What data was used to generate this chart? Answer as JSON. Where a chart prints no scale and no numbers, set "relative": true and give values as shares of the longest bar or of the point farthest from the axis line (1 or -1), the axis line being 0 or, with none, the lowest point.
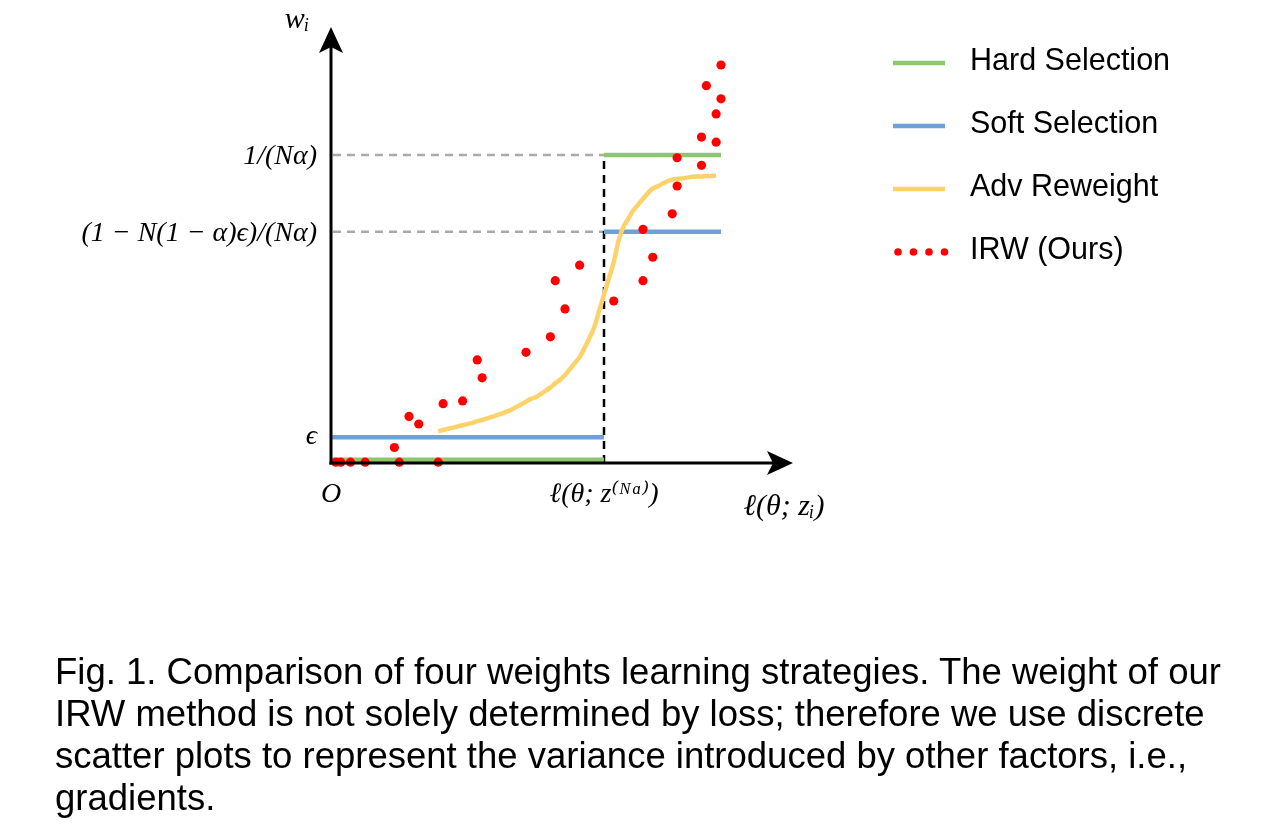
{
  "chart_data": {
    "type": "line",
    "relative": true,
    "xlabel": "ℓ(θ; zᵢ)",
    "ylabel": "wᵢ",
    "categories": [
      "O",
      null,
      null,
      null,
      null,
      null,
      null,
      null,
      null,
      null,
      null,
      null,
      null,
      null,
      null,
      null,
      null,
      null,
      null,
      null,
      null,
      null,
      null,
      null,
      null,
      null,
      null,
      null,
      null,
      null,
      null,
      null,
      null,
      null,
      null,
      null,
      null,
      null,
      null,
      null,
      null,
      null,
      null,
      null,
      null,
      null,
      null,
      null,
      null,
      null,
      null,
      null,
      null,
      null,
      null,
      null,
      "ℓ(θ; z⁽ᴺᵅ⁾)",
      null,
      null,
      null,
      null,
      null,
      null,
      null,
      null,
      null,
      null,
      null,
      null,
      null,
      null,
      null,
      null,
      null,
      null,
      null,
      null,
      null,
      null,
      null,
      null
    ],
    "series": [
      {
        "name": "Hard Selection",
        "color": "#8cc76f",
        "values": [
          0.008,
          0.008,
          0.008,
          0.008,
          0.008,
          0.008,
          0.008,
          0.008,
          0.008,
          0.008,
          0.008,
          0.008,
          0.008,
          0.008,
          0.008,
          0.008,
          0.008,
          0.008,
          0.008,
          0.008,
          0.008,
          0.008,
          0.008,
          0.008,
          0.008,
          0.008,
          0.008,
          0.008,
          0.008,
          0.008,
          0.008,
          0.008,
          0.008,
          0.008,
          0.008,
          0.008,
          0.008,
          0.008,
          0.008,
          0.008,
          0.008,
          0.008,
          0.008,
          0.008,
          0.008,
          0.008,
          0.008,
          0.008,
          0.008,
          0.008,
          0.008,
          0.008,
          0.008,
          0.008,
          0.008,
          0.008,
          0.008,
          null,
          null,
          null,
          null,
          null,
          null,
          null,
          null,
          null,
          null,
          null,
          null,
          null,
          null,
          null,
          null,
          null,
          null,
          null,
          null,
          null,
          null,
          null,
          null
        ]
      },
      {
        "name": "Soft Selection",
        "color": "#6fa0dc",
        "values": [
          0.065,
          0.065,
          0.065,
          0.065,
          0.065,
          0.065,
          0.065,
          0.065,
          0.065,
          0.065,
          0.065,
          0.065,
          0.065,
          0.065,
          0.065,
          0.065,
          0.065,
          0.065,
          0.065,
          0.065,
          0.065,
          0.065,
          0.065,
          0.065,
          0.065,
          0.065,
          0.065,
          0.065,
          0.065,
          0.065,
          0.065,
          0.065,
          0.065,
          0.065,
          0.065,
          0.065,
          0.065,
          0.065,
          0.065,
          0.065,
          0.065,
          0.065,
          0.065,
          0.065,
          0.065,
          0.065,
          0.065,
          0.065,
          0.065,
          0.065,
          0.065,
          0.065,
          0.065,
          0.065,
          0.065,
          0.065,
          0.065,
          null,
          null,
          null,
          null,
          null,
          null,
          null,
          null,
          null,
          null,
          null,
          null,
          null,
          null,
          null,
          null,
          null,
          null,
          null,
          null,
          null,
          null,
          null,
          null
        ]
      },
      {
        "name": "Adv Reweight",
        "color": "#fed26a",
        "values": [
          null,
          null,
          null,
          null,
          null,
          null,
          null,
          null,
          null,
          null,
          null,
          null,
          null,
          null,
          null,
          null,
          null,
          null,
          null,
          null,
          null,
          null,
          0.08,
          0.083,
          0.086,
          0.089,
          0.092,
          0.095,
          0.098,
          0.101,
          0.105,
          0.108,
          0.112,
          0.116,
          0.12,
          0.124,
          0.129,
          0.134,
          0.141,
          0.147,
          0.154,
          0.161,
          0.165,
          0.173,
          0.181,
          0.19,
          0.2,
          0.209,
          0.221,
          0.236,
          0.251,
          0.266,
          0.289,
          0.314,
          0.341,
          0.382,
          0.423,
          0.464,
          0.505,
          0.559,
          0.594,
          0.614,
          0.635,
          0.649,
          0.664,
          0.678,
          0.69,
          0.695,
          0.702,
          0.708,
          0.712,
          0.714,
          0.715,
          0.717,
          0.719,
          0.72,
          0.72,
          0.721,
          0.721,
          0.722,
          null
        ]
      },
      {
        "name": "IRW (Ours)",
        "type": "scatter",
        "marker": "circle",
        "color": "#ff0000",
        "values": [
          null,
          0.002,
          0.002,
          null,
          0.002,
          null,
          null,
          0.002,
          null,
          null,
          null,
          null,
          null,
          0.039,
          0.002,
          null,
          0.117,
          null,
          0.098,
          null,
          null,
          null,
          0.002,
          0.149,
          null,
          null,
          null,
          0.156,
          null,
          null,
          0.259,
          0.214,
          null,
          null,
          null,
          null,
          null,
          null,
          null,
          null,
          0.278,
          null,
          null,
          null,
          null,
          0.317,
          0.458,
          null,
          0.387,
          null,
          null,
          0.497,
          null,
          null,
          null,
          null,
          null,
          null,
          0.407,
          null,
          null,
          null,
          null,
          null,
          0.458,
          null,
          0.517,
          null,
          null,
          null,
          0.626,
          0.696,
          null,
          null,
          null,
          null,
          0.748,
          0.948,
          null,
          0.806,
          0.915
        ]
      },
      {
        "color": "#8cc76f",
        "values": [
          null,
          null,
          null,
          null,
          null,
          null,
          null,
          null,
          null,
          null,
          null,
          null,
          null,
          null,
          null,
          null,
          null,
          null,
          null,
          null,
          null,
          null,
          null,
          null,
          null,
          null,
          null,
          null,
          null,
          null,
          null,
          null,
          null,
          null,
          null,
          null,
          null,
          null,
          null,
          null,
          null,
          null,
          null,
          null,
          null,
          null,
          null,
          null,
          null,
          null,
          null,
          null,
          null,
          null,
          null,
          null,
          0.774,
          0.774,
          0.774,
          0.774,
          0.774,
          0.774,
          0.774,
          0.774,
          0.774,
          0.774,
          0.774,
          0.774,
          0.774,
          0.774,
          0.774,
          0.774,
          0.774,
          0.774,
          0.774,
          0.774,
          0.774,
          0.774,
          0.774,
          0.774,
          0.774
        ]
      },
      {
        "color": "#6fa0dc",
        "values": [
          null,
          null,
          null,
          null,
          null,
          null,
          null,
          null,
          null,
          null,
          null,
          null,
          null,
          null,
          null,
          null,
          null,
          null,
          null,
          null,
          null,
          null,
          null,
          null,
          null,
          null,
          null,
          null,
          null,
          null,
          null,
          null,
          null,
          null,
          null,
          null,
          null,
          null,
          null,
          null,
          null,
          null,
          null,
          null,
          null,
          null,
          null,
          null,
          null,
          null,
          null,
          null,
          null,
          null,
          null,
          null,
          0.581,
          0.581,
          0.581,
          0.581,
          0.581,
          0.581,
          0.581,
          0.581,
          0.581,
          0.581,
          0.581,
          0.581,
          0.581,
          0.581,
          0.581,
          0.581,
          0.581,
          0.581,
          0.581,
          0.581,
          0.581,
          0.581,
          0.581,
          0.581,
          0.581
        ]
      },
      {
        "type": "scatter",
        "marker": "circle",
        "color": "#ff0000",
        "values": [
          null,
          null,
          null,
          null,
          null,
          null,
          null,
          null,
          null,
          null,
          null,
          null,
          null,
          null,
          null,
          null,
          null,
          null,
          null,
          null,
          null,
          null,
          null,
          null,
          null,
          null,
          null,
          null,
          null,
          null,
          null,
          null,
          null,
          null,
          null,
          null,
          null,
          null,
          null,
          null,
          null,
          null,
          null,
          null,
          null,
          null,
          null,
          null,
          null,
          null,
          null,
          null,
          null,
          null,
          null,
          null,
          null,
          null,
          null,
          null,
          null,
          null,
          null,
          null,
          0.587,
          null,
          null,
          null,
          null,
          null,
          null,
          0.767,
          null,
          null,
          null,
          null,
          0.819,
          null,
          null,
          0.877,
          1
        ]
      }
    ],
    "ref_lines": [
      {
        "axis": "y",
        "value": 0.774,
        "label": "1/(Nα)",
        "color": "#aaaaaa",
        "line_style": "dashed"
      },
      {
        "axis": "y",
        "value": 0.581,
        "label": "(1 − N(1 − α)ϵ)/(Nα)",
        "color": "#aaaaaa",
        "line_style": "dashed"
      },
      {
        "axis": "x",
        "value": "ℓ(θ; z⁽ᴺᵅ⁾)",
        "color": "#000000",
        "line_style": "dashed"
      }
    ],
    "legend": "right",
    "annotations": [
      "ϵ",
      "Fig. 1. Comparison of four weights learning strategies. The weight of our IRW method is not solely determined by loss; therefore we use discrete scatter plots to represent the variance introduced by other factors, i.e., gradients."
    ]
  }
}
